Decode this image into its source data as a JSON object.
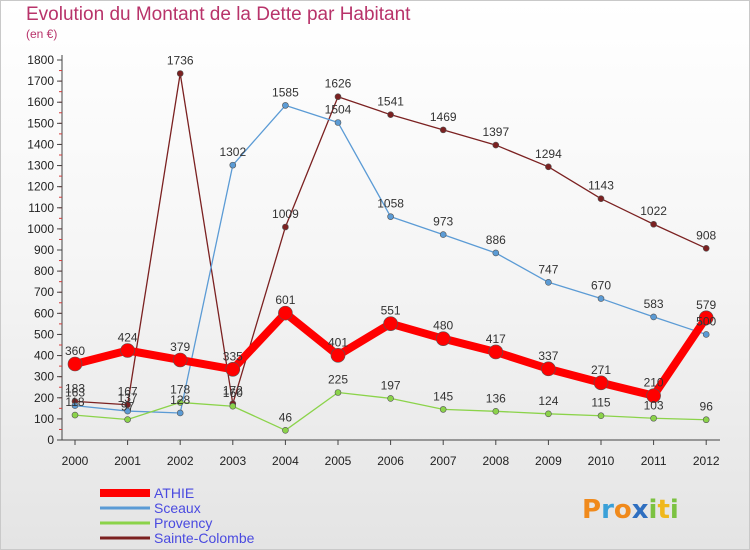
{
  "title": "Evolution du Montant de la Dette par Habitant",
  "subtitle": "(en €)",
  "chart_data": {
    "type": "line",
    "title": "Evolution du Montant de la Dette par Habitant",
    "subtitle": "(en €)",
    "xlabel": "",
    "ylabel": "",
    "ylim": [
      0,
      1800
    ],
    "yticks": [
      0,
      100,
      200,
      300,
      400,
      500,
      600,
      700,
      800,
      900,
      1000,
      1100,
      1200,
      1300,
      1400,
      1500,
      1600,
      1700,
      1800
    ],
    "categories": [
      "2000",
      "2001",
      "2002",
      "2003",
      "2004",
      "2005",
      "2006",
      "2007",
      "2008",
      "2009",
      "2010",
      "2011",
      "2012"
    ],
    "grid": false,
    "legend_position": "bottom-left",
    "series": [
      {
        "name": "ATHIE",
        "color": "#ff0000",
        "values": [
          360,
          424,
          379,
          335,
          601,
          401,
          551,
          480,
          417,
          337,
          271,
          210,
          579
        ],
        "labels": [
          "360",
          "424",
          "379",
          "335",
          "601",
          "401",
          "551",
          "480",
          "417",
          "337",
          "271",
          "210",
          "579"
        ]
      },
      {
        "name": "Sceaux",
        "color": "#5b9bd5",
        "values": [
          163,
          137,
          128,
          1302,
          1585,
          1504,
          1058,
          973,
          886,
          747,
          670,
          583,
          500
        ],
        "labels": [
          "163",
          "137",
          "128",
          "1302",
          "1585",
          "1504",
          "1058",
          "973",
          "886",
          "747",
          "670",
          "583",
          "500"
        ]
      },
      {
        "name": "Provency",
        "color": "#8bd34a",
        "values": [
          118,
          97,
          178,
          160,
          46,
          225,
          197,
          145,
          136,
          124,
          115,
          103,
          96
        ],
        "labels": [
          "118",
          "97",
          "178",
          "160",
          "46",
          "225",
          "197",
          "145",
          "136",
          "124",
          "115",
          "103",
          "96"
        ]
      },
      {
        "name": "Sainte-Colombe",
        "color": "#7b2121",
        "values": [
          183,
          167,
          1736,
          172,
          1009,
          1626,
          1541,
          1469,
          1397,
          1294,
          1143,
          1022,
          908
        ],
        "labels": [
          "183",
          "167",
          "1736",
          "172",
          "1009",
          "1626",
          "1541",
          "1469",
          "1397",
          "1294",
          "1143",
          "1022",
          "908"
        ]
      }
    ]
  },
  "brand": {
    "name": "Proxiti",
    "letters": [
      "P",
      "r",
      "o",
      "x",
      "i",
      "t",
      "i"
    ],
    "colors": [
      "#f08a1c",
      "#3aa0d8",
      "#f08a1c",
      "#2f6fc0",
      "#7cc242",
      "#f0b81c",
      "#7cc242"
    ]
  }
}
